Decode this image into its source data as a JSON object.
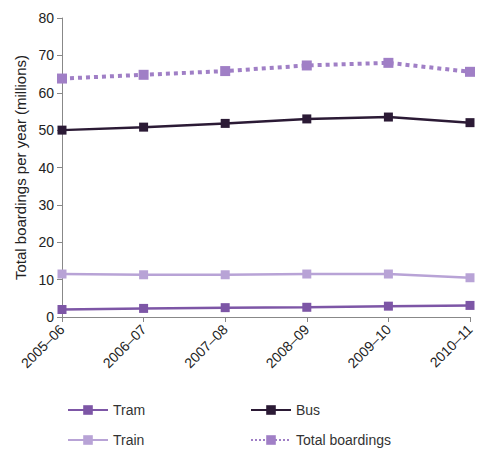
{
  "chart_data": {
    "type": "line",
    "y_label": "Total boardings per year (millions)",
    "categories": [
      "2005–06",
      "2006–07",
      "2007–08",
      "2008–09",
      "2009–10",
      "2010–11"
    ],
    "series": [
      {
        "name": "Tram",
        "color": "#7d56a6",
        "marker": "square",
        "line_style": "solid",
        "values": [
          2.0,
          2.3,
          2.5,
          2.6,
          2.9,
          3.1
        ]
      },
      {
        "name": "Train",
        "color": "#b8a3d6",
        "marker": "square",
        "line_style": "solid",
        "values": [
          11.5,
          11.3,
          11.3,
          11.5,
          11.5,
          10.5
        ]
      },
      {
        "name": "Bus",
        "color": "#2b1a35",
        "marker": "square",
        "line_style": "solid",
        "values": [
          50.0,
          50.8,
          51.8,
          53.0,
          53.5,
          52.0
        ]
      },
      {
        "name": "Total boardings",
        "color": "#a07fc6",
        "marker": "square",
        "line_style": "dotted",
        "values": [
          63.8,
          64.8,
          65.8,
          67.3,
          68.0,
          65.6
        ]
      }
    ],
    "ylim": [
      0,
      80
    ],
    "yticks": [
      0,
      10,
      20,
      30,
      40,
      50,
      60,
      70,
      80
    ],
    "grid": false,
    "legend": "bottom"
  }
}
